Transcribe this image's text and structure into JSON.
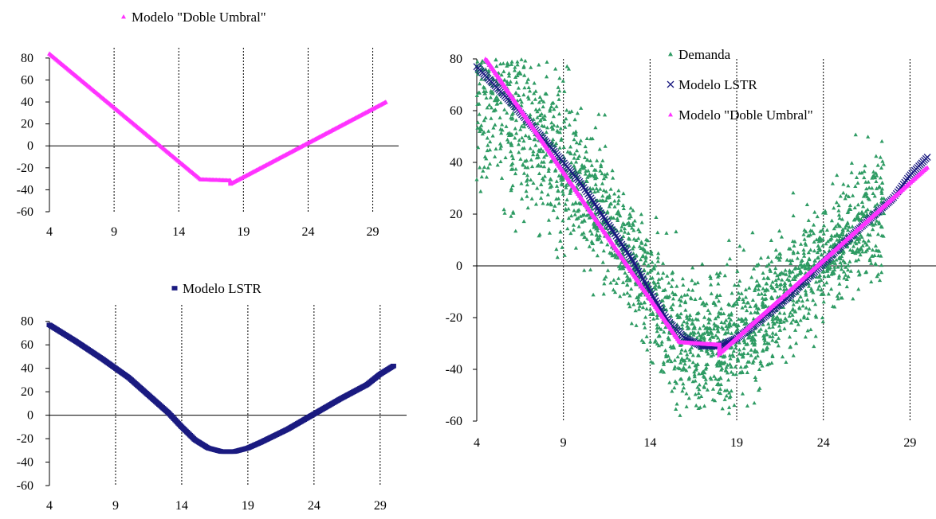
{
  "colors": {
    "magenta": "#ff33ff",
    "navy": "#1a1a80",
    "green": "#2e9b63",
    "axis": "#000000"
  },
  "chart_data": [
    {
      "id": "tl",
      "type": "line",
      "xlim": [
        4,
        31
      ],
      "ylim": [
        -60,
        85
      ],
      "xticks": [
        4,
        9,
        14,
        19,
        24,
        29
      ],
      "yticks": [
        80,
        60,
        40,
        20,
        0,
        -20,
        -40,
        -60
      ],
      "xtick_labels": [
        "4",
        "9",
        "14",
        "19",
        "24",
        "29"
      ],
      "ytick_labels": [
        "80",
        "60",
        "40",
        "20",
        "0",
        "-20",
        "-40",
        "-60"
      ],
      "legend": [
        "Modelo \"Doble Umbral\""
      ],
      "legend_position": "top",
      "series": [
        {
          "name": "Modelo \"Doble Umbral\"",
          "marker": "triangle",
          "color": "#ff33ff",
          "x": [
            4.0,
            15.7,
            18.0,
            18.0,
            30.0
          ],
          "y": [
            84,
            -30.5,
            -31.5,
            -34.5,
            40
          ]
        }
      ]
    },
    {
      "id": "bl",
      "type": "line",
      "xlim": [
        4,
        31
      ],
      "ylim": [
        -60,
        90
      ],
      "xticks": [
        4,
        9,
        14,
        19,
        24,
        29
      ],
      "yticks": [
        80,
        60,
        40,
        20,
        0,
        -20,
        -40,
        -60
      ],
      "xtick_labels": [
        "4",
        "9",
        "14",
        "19",
        "24",
        "29"
      ],
      "ytick_labels": [
        "80",
        "60",
        "40",
        "20",
        "0",
        "-20",
        "-40",
        "-60"
      ],
      "legend": [
        "Modelo LSTR"
      ],
      "legend_position": "top",
      "series": [
        {
          "name": "Modelo LSTR",
          "marker": "square",
          "color": "#1a1a80",
          "x": [
            4,
            6,
            8,
            10,
            12,
            13,
            14,
            15,
            16,
            17,
            18,
            19,
            20,
            22,
            24,
            26,
            28,
            29,
            30
          ],
          "y": [
            77,
            63,
            48,
            32,
            12,
            2,
            -10,
            -21,
            -28,
            -31,
            -31,
            -28,
            -23,
            -12,
            1,
            14,
            26,
            35,
            42
          ]
        }
      ]
    },
    {
      "id": "right",
      "type": "scatter",
      "xlim": [
        4,
        30.5
      ],
      "ylim": [
        -60,
        80
      ],
      "xticks": [
        4,
        9,
        14,
        19,
        24,
        29
      ],
      "yticks": [
        80,
        60,
        40,
        20,
        0,
        -20,
        -40,
        -60
      ],
      "xtick_labels": [
        "4",
        "9",
        "14",
        "19",
        "24",
        "29"
      ],
      "ytick_labels": [
        "80",
        "60",
        "40",
        "20",
        "0",
        "-20",
        "-40",
        "-60"
      ],
      "legend": [
        "Demanda",
        "Modelo LSTR",
        "Modelo \"Doble Umbral\""
      ],
      "legend_position": "top-right",
      "series": [
        {
          "name": "Demanda",
          "marker": "triangle",
          "color": "#2e9b63",
          "style": "scatter",
          "count": 2400
        },
        {
          "name": "Modelo LSTR",
          "marker": "x",
          "color": "#1a1a80",
          "x": [
            4,
            6,
            8,
            10,
            12,
            13,
            14,
            15,
            16,
            17,
            18,
            19,
            20,
            22,
            24,
            26,
            28,
            29,
            30
          ],
          "y": [
            77,
            63,
            48,
            32,
            12,
            2,
            -10,
            -21,
            -28,
            -31,
            -31,
            -28,
            -23,
            -12,
            1,
            14,
            26,
            35,
            42
          ]
        },
        {
          "name": "Modelo \"Doble Umbral\"",
          "marker": "triangle",
          "color": "#ff33ff",
          "x": [
            4.5,
            15.7,
            18.0,
            18.0,
            30.0
          ],
          "y": [
            80,
            -29.5,
            -30.5,
            -34,
            38
          ]
        }
      ]
    }
  ]
}
